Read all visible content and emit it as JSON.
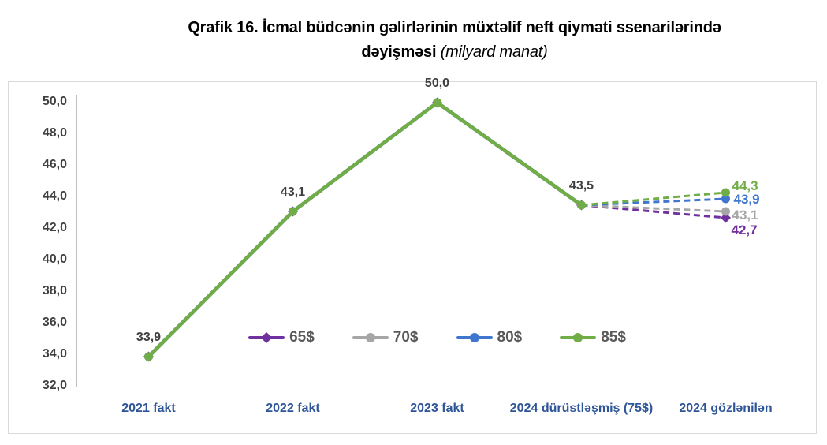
{
  "title": {
    "line1": "Qrafik 16. İcmal büdcənin gəlirlərinin müxtəlif neft qiyməti ssenarilərində",
    "line2_bold": "dəyişməsi",
    "line2_italic": "(milyard manat)"
  },
  "style": {
    "axis_line_color": "#BFBFBF",
    "frame_border_color": "#D9D9D9",
    "ytick_color": "#404040",
    "xlabel_color": "#2E5597",
    "point_label_color": "#404040",
    "legend_label_color": "#595959"
  },
  "chart_data": {
    "type": "line",
    "title": "",
    "xlabel": "",
    "ylabel": "",
    "grid": false,
    "legend_position": "inside-center",
    "categories": [
      "2021 fakt",
      "2022 fakt",
      "2023 fakt",
      "2024 dürüstləşmiş (75$)",
      "2024 gözlənilən"
    ],
    "ylim": [
      32,
      50
    ],
    "ytick_values": [
      32,
      34,
      36,
      38,
      40,
      42,
      44,
      46,
      48,
      50
    ],
    "ytick_labels": [
      "32,0",
      "34,0",
      "36,0",
      "38,0",
      "40,0",
      "42,0",
      "44,0",
      "46,0",
      "48,0",
      "50,0"
    ],
    "series": [
      {
        "name": "65$",
        "color": "#7030A0",
        "marker": "diamond",
        "dash_from": 3,
        "values": [
          33.9,
          43.1,
          50.0,
          43.5,
          42.7
        ],
        "end_label": "42,7"
      },
      {
        "name": "70$",
        "color": "#A6A6A6",
        "marker": "circle",
        "dash_from": 3,
        "values": [
          33.9,
          43.1,
          50.0,
          43.5,
          43.1
        ],
        "end_label": "43,1"
      },
      {
        "name": "80$",
        "color": "#4076CE",
        "marker": "circle",
        "dash_from": 3,
        "values": [
          33.9,
          43.1,
          50.0,
          43.5,
          43.9
        ],
        "end_label": "43,9"
      },
      {
        "name": "85$",
        "color": "#70AD47",
        "marker": "circle",
        "dash_from": 3,
        "values": [
          33.9,
          43.1,
          50.0,
          43.5,
          44.3
        ],
        "end_label": "44,3"
      }
    ],
    "shared_point_labels": [
      {
        "index": 0,
        "text": "33,9"
      },
      {
        "index": 1,
        "text": "43,1"
      },
      {
        "index": 2,
        "text": "50,0"
      },
      {
        "index": 3,
        "text": "43,5"
      }
    ]
  }
}
